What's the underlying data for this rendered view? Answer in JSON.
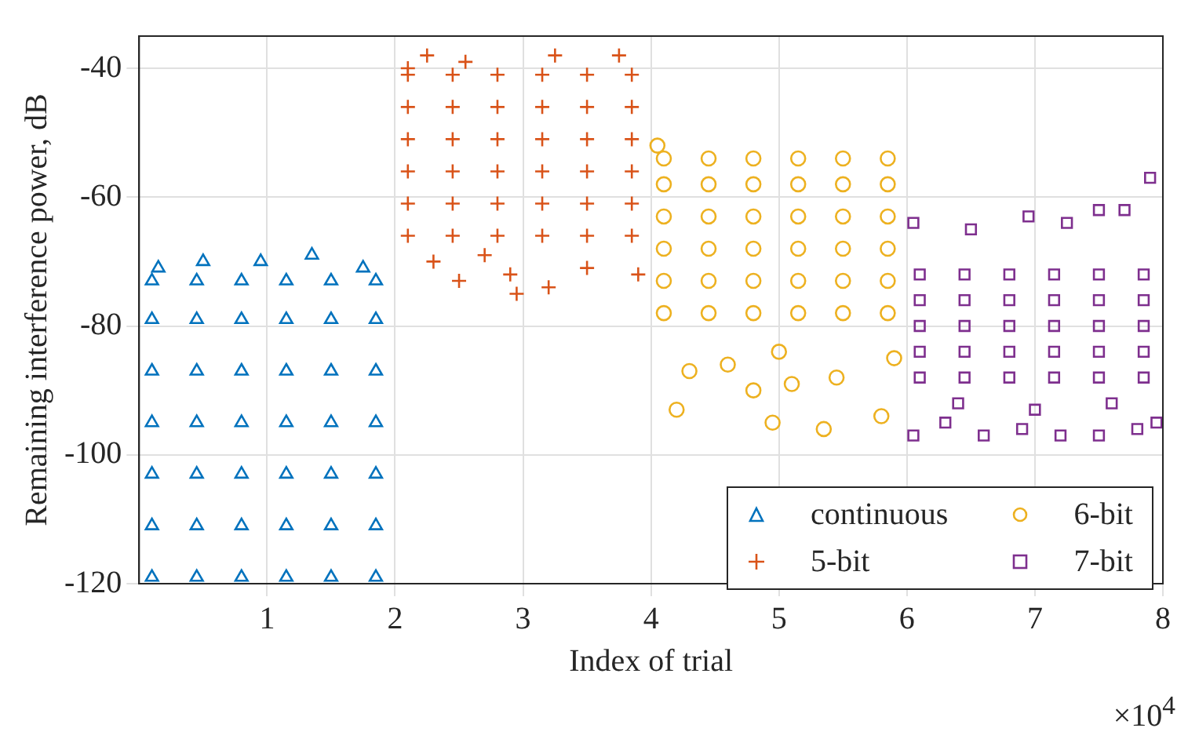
{
  "chart_data": {
    "type": "scatter",
    "xlabel": "Index of trial",
    "ylabel": "Remaining interference power, dB",
    "annotations": [
      "×10$^{4}$"
    ],
    "xlim": [
      0,
      8
    ],
    "xticks": [
      1,
      2,
      3,
      4,
      5,
      6,
      7,
      8
    ],
    "ylim": [
      -120,
      -35
    ],
    "yticks": [
      -120,
      -100,
      -80,
      -60,
      -40
    ],
    "grid": true,
    "legend": "bottom right",
    "series": [
      {
        "name": "continuous",
        "color": "#0072bd",
        "marker": "triangle",
        "x": [
          0.1,
          0.45,
          0.8,
          1.15,
          1.5,
          1.85,
          0.1,
          0.45,
          0.8,
          1.15,
          1.5,
          1.85,
          0.1,
          0.45,
          0.8,
          1.15,
          1.5,
          1.85,
          0.1,
          0.45,
          0.8,
          1.15,
          1.5,
          1.85,
          0.1,
          0.45,
          0.8,
          1.15,
          1.5,
          1.85,
          0.1,
          0.45,
          0.8,
          1.15,
          1.5,
          1.85,
          0.1,
          0.45,
          0.8,
          1.15,
          1.5,
          1.85,
          0.15,
          0.5,
          0.95,
          1.35,
          1.75
        ],
        "values": [
          -119,
          -119,
          -119,
          -119,
          -119,
          -119,
          -111,
          -111,
          -111,
          -111,
          -111,
          -111,
          -103,
          -103,
          -103,
          -103,
          -103,
          -103,
          -95,
          -95,
          -95,
          -95,
          -95,
          -95,
          -87,
          -87,
          -87,
          -87,
          -87,
          -87,
          -79,
          -79,
          -79,
          -79,
          -79,
          -79,
          -73,
          -73,
          -73,
          -73,
          -73,
          -73,
          -71,
          -70,
          -70,
          -69,
          -71
        ]
      },
      {
        "name": "5-bit",
        "color": "#d95319",
        "marker": "cross",
        "x": [
          2.1,
          2.45,
          2.8,
          3.15,
          3.5,
          3.85,
          2.1,
          2.45,
          2.8,
          3.15,
          3.5,
          3.85,
          2.1,
          2.45,
          2.8,
          3.15,
          3.5,
          3.85,
          2.1,
          2.45,
          2.8,
          3.15,
          3.5,
          3.85,
          2.1,
          2.45,
          2.8,
          3.15,
          3.5,
          3.85,
          2.1,
          2.45,
          2.8,
          3.15,
          3.5,
          3.85,
          2.1,
          2.25,
          2.55,
          3.25,
          3.75,
          2.3,
          2.5,
          2.9,
          3.2,
          3.5,
          3.9,
          2.7,
          2.95
        ],
        "values": [
          -66,
          -66,
          -66,
          -66,
          -66,
          -66,
          -61,
          -61,
          -61,
          -61,
          -61,
          -61,
          -56,
          -56,
          -56,
          -56,
          -56,
          -56,
          -51,
          -51,
          -51,
          -51,
          -51,
          -51,
          -46,
          -46,
          -46,
          -46,
          -46,
          -46,
          -41,
          -41,
          -41,
          -41,
          -41,
          -41,
          -40,
          -38,
          -39,
          -38,
          -38,
          -70,
          -73,
          -72,
          -74,
          -71,
          -72,
          -69,
          -75
        ]
      },
      {
        "name": "6-bit",
        "color": "#edb120",
        "marker": "circle",
        "x": [
          4.1,
          4.45,
          4.8,
          5.15,
          5.5,
          5.85,
          4.1,
          4.45,
          4.8,
          5.15,
          5.5,
          5.85,
          4.1,
          4.45,
          4.8,
          5.15,
          5.5,
          5.85,
          4.1,
          4.45,
          4.8,
          5.15,
          5.5,
          5.85,
          4.1,
          4.45,
          4.8,
          5.15,
          5.5,
          5.85,
          4.1,
          4.45,
          4.8,
          5.15,
          5.5,
          5.85,
          4.05,
          4.2,
          4.95,
          5.35,
          5.8,
          4.8,
          5.1,
          4.3,
          5.45,
          4.6,
          5.0,
          5.9
        ],
        "values": [
          -78,
          -78,
          -78,
          -78,
          -78,
          -78,
          -73,
          -73,
          -73,
          -73,
          -73,
          -73,
          -68,
          -68,
          -68,
          -68,
          -68,
          -68,
          -63,
          -63,
          -63,
          -63,
          -63,
          -63,
          -58,
          -58,
          -58,
          -58,
          -58,
          -58,
          -54,
          -54,
          -54,
          -54,
          -54,
          -54,
          -52,
          -93,
          -95,
          -96,
          -94,
          -90,
          -89,
          -87,
          -88,
          -86,
          -84,
          -85
        ]
      },
      {
        "name": "7-bit",
        "color": "#7e2f8e",
        "marker": "square",
        "x": [
          6.1,
          6.45,
          6.8,
          7.15,
          7.5,
          7.85,
          6.1,
          6.45,
          6.8,
          7.15,
          7.5,
          7.85,
          6.1,
          6.45,
          6.8,
          7.15,
          7.5,
          7.85,
          6.1,
          6.45,
          6.8,
          7.15,
          7.5,
          7.85,
          6.1,
          6.45,
          6.8,
          7.15,
          7.5,
          7.85,
          6.05,
          6.5,
          6.95,
          7.25,
          7.5,
          7.7,
          7.9,
          6.05,
          6.3,
          6.6,
          6.9,
          7.2,
          7.5,
          7.8,
          6.4,
          7.0,
          7.6,
          7.95
        ],
        "values": [
          -88,
          -88,
          -88,
          -88,
          -88,
          -88,
          -84,
          -84,
          -84,
          -84,
          -84,
          -84,
          -80,
          -80,
          -80,
          -80,
          -80,
          -80,
          -76,
          -76,
          -76,
          -76,
          -76,
          -76,
          -72,
          -72,
          -72,
          -72,
          -72,
          -72,
          -64,
          -65,
          -63,
          -64,
          -62,
          -62,
          -57,
          -97,
          -95,
          -97,
          -96,
          -97,
          -97,
          -96,
          -92,
          -93,
          -92,
          -95
        ]
      }
    ]
  }
}
